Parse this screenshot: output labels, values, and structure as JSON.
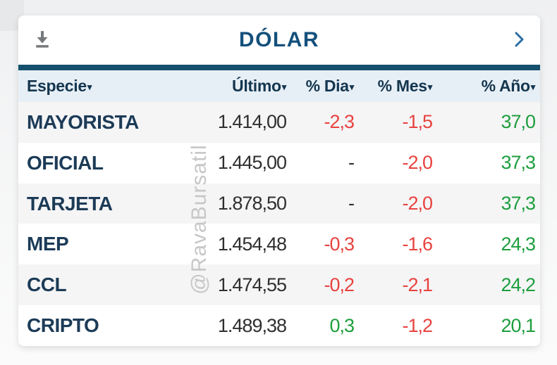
{
  "widget": {
    "title": "DÓLAR",
    "icons": {
      "download": "download-icon",
      "chevron": "chevron-right-icon",
      "sort": "▾"
    }
  },
  "table": {
    "columns": [
      {
        "label": "Especie",
        "sortable": true
      },
      {
        "label": "Último",
        "sortable": true
      },
      {
        "label": "% Dia",
        "sortable": true
      },
      {
        "label": "% Mes",
        "sortable": true
      },
      {
        "label": "% Año",
        "sortable": true
      }
    ],
    "rows": [
      {
        "especie": "MAYORISTA",
        "ultimo": "1.414,00",
        "dia": "-2,3",
        "dia_tone": "neg",
        "mes": "-1,5",
        "mes_tone": "neg",
        "ano": "37,0",
        "ano_tone": "pos"
      },
      {
        "especie": "OFICIAL",
        "ultimo": "1.445,00",
        "dia": "-",
        "dia_tone": "dark",
        "mes": "-2,0",
        "mes_tone": "neg",
        "ano": "37,3",
        "ano_tone": "pos"
      },
      {
        "especie": "TARJETA",
        "ultimo": "1.878,50",
        "dia": "-",
        "dia_tone": "dark",
        "mes": "-2,0",
        "mes_tone": "neg",
        "ano": "37,3",
        "ano_tone": "pos"
      },
      {
        "especie": "MEP",
        "ultimo": "1.454,48",
        "dia": "-0,3",
        "dia_tone": "neg",
        "mes": "-1,6",
        "mes_tone": "neg",
        "ano": "24,3",
        "ano_tone": "pos"
      },
      {
        "especie": "CCL",
        "ultimo": "1.474,55",
        "dia": "-0,2",
        "dia_tone": "neg",
        "mes": "-2,1",
        "mes_tone": "neg",
        "ano": "24,2",
        "ano_tone": "pos"
      },
      {
        "especie": "CRIPTO",
        "ultimo": "1.489,38",
        "dia": "0,3",
        "dia_tone": "pos",
        "mes": "-1,2",
        "mes_tone": "neg",
        "ano": "20,1",
        "ano_tone": "pos"
      }
    ]
  },
  "watermark": {
    "text": "@RavaBursatil"
  },
  "colors": {
    "negative": "#e8423f",
    "positive": "#1e9e3e",
    "accent_navy": "#14506e",
    "header_bg": "#e7eff6",
    "title_navy": "#14507c"
  }
}
